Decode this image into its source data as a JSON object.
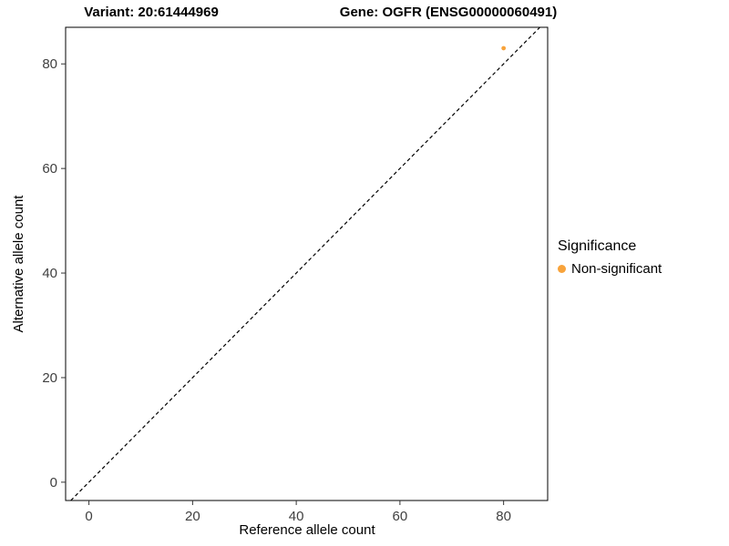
{
  "chart_data": {
    "type": "scatter",
    "title_left": "Variant: 20:61444969",
    "title_right": "Gene: OGFR (ENSG00000060491)",
    "xlabel": "Reference allele count",
    "ylabel": "Alternative allele count",
    "xlim": [
      -4.5,
      88.5
    ],
    "ylim": [
      -3.5,
      87
    ],
    "xticks": [
      0,
      20,
      40,
      60,
      80
    ],
    "yticks": [
      0,
      20,
      40,
      60,
      80
    ],
    "grid": false,
    "panel_border_color": "#000000",
    "identity_line": {
      "style": "dashed",
      "color": "#000000"
    },
    "series": [
      {
        "name": "Non-significant",
        "color": "#F8A33B",
        "points": [
          {
            "x": 80,
            "y": 83
          }
        ]
      }
    ],
    "legend": {
      "position": "right",
      "title": "Significance",
      "entries": [
        {
          "label": "Non-significant",
          "color": "#F8A33B"
        }
      ]
    }
  }
}
